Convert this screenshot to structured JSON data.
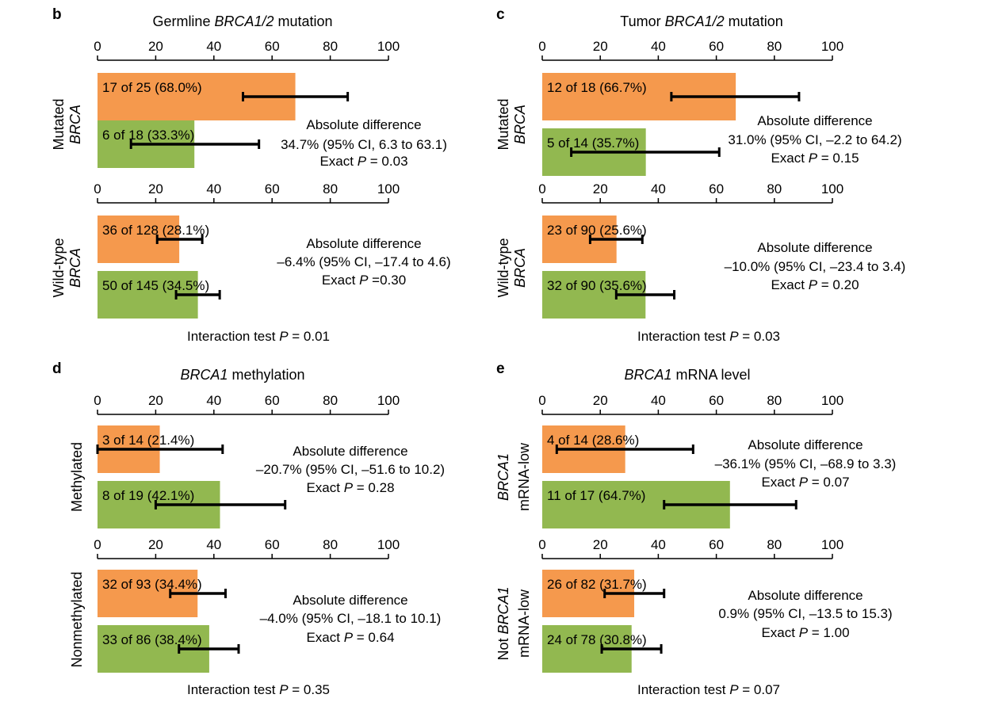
{
  "colors": {
    "orange": "#F5994D",
    "green": "#92B850",
    "errorbar": "#000000"
  },
  "chart_data": [
    {
      "type": "bar",
      "panel": "b",
      "title": "Germline BRCA1/2 mutation",
      "title_parts": [
        {
          "t": "Germline ",
          "i": false
        },
        {
          "t": "BRCA1/2",
          "i": true
        },
        {
          "t": " mutation",
          "i": false
        }
      ],
      "xlim": [
        0,
        100
      ],
      "xticks": [
        "0",
        "20",
        "40",
        "60",
        "80",
        "100"
      ],
      "groups": [
        {
          "label": [
            [
              {
                "t": "Mutated",
                "i": false
              }
            ],
            [
              {
                "t": "BRCA",
                "i": true
              }
            ]
          ],
          "bars": [
            {
              "label": "17 of 25 (68.0%)",
              "value": 68.0,
              "ci": [
                50,
                86
              ],
              "color": "orange"
            },
            {
              "label": "6 of 18 (33.3%)",
              "value": 33.3,
              "ci": [
                11.5,
                55.5
              ],
              "color": "green"
            }
          ],
          "difference": [
            [
              {
                "t": "Absolute difference",
                "i": false
              }
            ],
            [
              {
                "t": "34.7% (95% CI, 6.3 to 63.1)",
                "i": false
              }
            ],
            [
              {
                "t": "Exact ",
                "i": false
              },
              {
                "t": "P",
                "i": true
              },
              {
                "t": " = 0.03",
                "i": false
              }
            ]
          ]
        },
        {
          "label": [
            [
              {
                "t": "Wild-type",
                "i": false
              }
            ],
            [
              {
                "t": "BRCA",
                "i": true
              }
            ]
          ],
          "bars": [
            {
              "label": "36 of 128 (28.1%)",
              "value": 28.1,
              "ci": [
                20.5,
                36
              ],
              "color": "orange"
            },
            {
              "label": "50 of 145 (34.5%)",
              "value": 34.5,
              "ci": [
                27,
                42
              ],
              "color": "green"
            }
          ],
          "difference": [
            [
              {
                "t": "Absolute difference",
                "i": false
              }
            ],
            [
              {
                "t": "–6.4% (95% CI, –17.4 to 4.6)",
                "i": false
              }
            ],
            [
              {
                "t": "Exact ",
                "i": false
              },
              {
                "t": "P",
                "i": true
              },
              {
                "t": " =0.30",
                "i": false
              }
            ]
          ]
        }
      ],
      "interaction": [
        {
          "t": "Interaction test ",
          "i": false
        },
        {
          "t": "P",
          "i": true
        },
        {
          "t": " = 0.01",
          "i": false
        }
      ]
    },
    {
      "type": "bar",
      "panel": "c",
      "title": "Tumor BRCA1/2 mutation",
      "title_parts": [
        {
          "t": "Tumor ",
          "i": false
        },
        {
          "t": "BRCA1/2",
          "i": true
        },
        {
          "t": " mutation",
          "i": false
        }
      ],
      "xlim": [
        0,
        100
      ],
      "xticks": [
        "0",
        "20",
        "40",
        "60",
        "80",
        "100"
      ],
      "groups": [
        {
          "label": [
            [
              {
                "t": "Mutated",
                "i": false
              }
            ],
            [
              {
                "t": "BRCA",
                "i": true
              }
            ]
          ],
          "bars": [
            {
              "label": "12 of 18 (66.7%)",
              "value": 66.7,
              "ci": [
                44.5,
                88.5
              ],
              "color": "orange"
            },
            {
              "label": "5 of 14 (35.7%)",
              "value": 35.7,
              "ci": [
                10,
                61
              ],
              "color": "green"
            }
          ],
          "difference": [
            [
              {
                "t": "Absolute difference",
                "i": false
              }
            ],
            [
              {
                "t": "31.0% (95% CI, –2.2 to 64.2)",
                "i": false
              }
            ],
            [
              {
                "t": "Exact ",
                "i": false
              },
              {
                "t": "P",
                "i": true
              },
              {
                "t": " = 0.15",
                "i": false
              }
            ]
          ]
        },
        {
          "label": [
            [
              {
                "t": "Wild-type",
                "i": false
              }
            ],
            [
              {
                "t": "BRCA",
                "i": true
              }
            ]
          ],
          "bars": [
            {
              "label": "23 of 90 (25.6%)",
              "value": 25.6,
              "ci": [
                16.5,
                34.5
              ],
              "color": "orange"
            },
            {
              "label": "32 of 90 (35.6%)",
              "value": 35.6,
              "ci": [
                25.5,
                45.5
              ],
              "color": "green"
            }
          ],
          "difference": [
            [
              {
                "t": "Absolute difference",
                "i": false
              }
            ],
            [
              {
                "t": "–10.0% (95% CI, –23.4 to 3.4)",
                "i": false
              }
            ],
            [
              {
                "t": "Exact ",
                "i": false
              },
              {
                "t": "P",
                "i": true
              },
              {
                "t": " = 0.20",
                "i": false
              }
            ]
          ]
        }
      ],
      "interaction": [
        {
          "t": "Interaction test ",
          "i": false
        },
        {
          "t": "P",
          "i": true
        },
        {
          "t": " = 0.03",
          "i": false
        }
      ]
    },
    {
      "type": "bar",
      "panel": "d",
      "title": "BRCA1 methylation",
      "title_parts": [
        {
          "t": "BRCA1",
          "i": true
        },
        {
          "t": " methylation",
          "i": false
        }
      ],
      "xlim": [
        0,
        100
      ],
      "xticks": [
        "0",
        "20",
        "40",
        "60",
        "80",
        "100"
      ],
      "groups": [
        {
          "label": [
            [
              {
                "t": "Methylated",
                "i": false
              }
            ]
          ],
          "bars": [
            {
              "label": "3 of 14 (21.4%)",
              "value": 21.4,
              "ci": [
                0,
                43
              ],
              "color": "orange"
            },
            {
              "label": "8 of 19 (42.1%)",
              "value": 42.1,
              "ci": [
                20,
                64.5
              ],
              "color": "green"
            }
          ],
          "difference": [
            [
              {
                "t": "Absolute difference",
                "i": false
              }
            ],
            [
              {
                "t": "–20.7% (95% CI, –51.6 to 10.2)",
                "i": false
              }
            ],
            [
              {
                "t": "Exact ",
                "i": false
              },
              {
                "t": "P",
                "i": true
              },
              {
                "t": " = 0.28",
                "i": false
              }
            ]
          ]
        },
        {
          "label": [
            [
              {
                "t": "Nonmethylated",
                "i": false
              }
            ]
          ],
          "bars": [
            {
              "label": "32 of 93 (34.4%)",
              "value": 34.4,
              "ci": [
                25,
                44
              ],
              "color": "orange"
            },
            {
              "label": "33 of 86 (38.4%)",
              "value": 38.4,
              "ci": [
                28,
                48.5
              ],
              "color": "green"
            }
          ],
          "difference": [
            [
              {
                "t": "Absolute difference",
                "i": false
              }
            ],
            [
              {
                "t": "–4.0% (95% CI, –18.1 to 10.1)",
                "i": false
              }
            ],
            [
              {
                "t": "Exact ",
                "i": false
              },
              {
                "t": "P",
                "i": true
              },
              {
                "t": " = 0.64",
                "i": false
              }
            ]
          ]
        }
      ],
      "interaction": [
        {
          "t": "Interaction test ",
          "i": false
        },
        {
          "t": "P",
          "i": true
        },
        {
          "t": " = 0.35",
          "i": false
        }
      ]
    },
    {
      "type": "bar",
      "panel": "e",
      "title": "BRCA1 mRNA level",
      "title_parts": [
        {
          "t": "BRCA1",
          "i": true
        },
        {
          "t": " mRNA level",
          "i": false
        }
      ],
      "xlim": [
        0,
        100
      ],
      "xticks": [
        "0",
        "20",
        "40",
        "60",
        "80",
        "100"
      ],
      "groups": [
        {
          "label": [
            [
              {
                "t": "BRCA1",
                "i": true
              }
            ],
            [
              {
                "t": "mRNA-low",
                "i": false
              }
            ]
          ],
          "bars": [
            {
              "label": "4 of 14 (28.6%)",
              "value": 28.6,
              "ci": [
                5,
                52
              ],
              "color": "orange"
            },
            {
              "label": "11 of 17 (64.7%)",
              "value": 64.7,
              "ci": [
                42,
                87.5
              ],
              "color": "green"
            }
          ],
          "difference": [
            [
              {
                "t": "Absolute difference",
                "i": false
              }
            ],
            [
              {
                "t": "–36.1% (95% CI, –68.9 to 3.3)",
                "i": false
              }
            ],
            [
              {
                "t": "Exact ",
                "i": false
              },
              {
                "t": "P",
                "i": true
              },
              {
                "t": " = 0.07",
                "i": false
              }
            ]
          ]
        },
        {
          "label": [
            [
              {
                "t": "Not ",
                "i": false
              },
              {
                "t": "BRCA1",
                "i": true
              }
            ],
            [
              {
                "t": "mRNA-low",
                "i": false
              }
            ]
          ],
          "bars": [
            {
              "label": "26 of 82 (31.7%)",
              "value": 31.7,
              "ci": [
                21.5,
                42
              ],
              "color": "orange"
            },
            {
              "label": "24 of 78 (30.8%)",
              "value": 30.8,
              "ci": [
                20.5,
                41
              ],
              "color": "green"
            }
          ],
          "difference": [
            [
              {
                "t": "Absolute difference",
                "i": false
              }
            ],
            [
              {
                "t": "0.9% (95% CI, –13.5 to 15.3)",
                "i": false
              }
            ],
            [
              {
                "t": "Exact ",
                "i": false
              },
              {
                "t": "P",
                "i": true
              },
              {
                "t": " = 1.00",
                "i": false
              }
            ]
          ]
        }
      ],
      "interaction": [
        {
          "t": "Interaction test ",
          "i": false
        },
        {
          "t": "P",
          "i": true
        },
        {
          "t": " = 0.07",
          "i": false
        }
      ]
    }
  ]
}
